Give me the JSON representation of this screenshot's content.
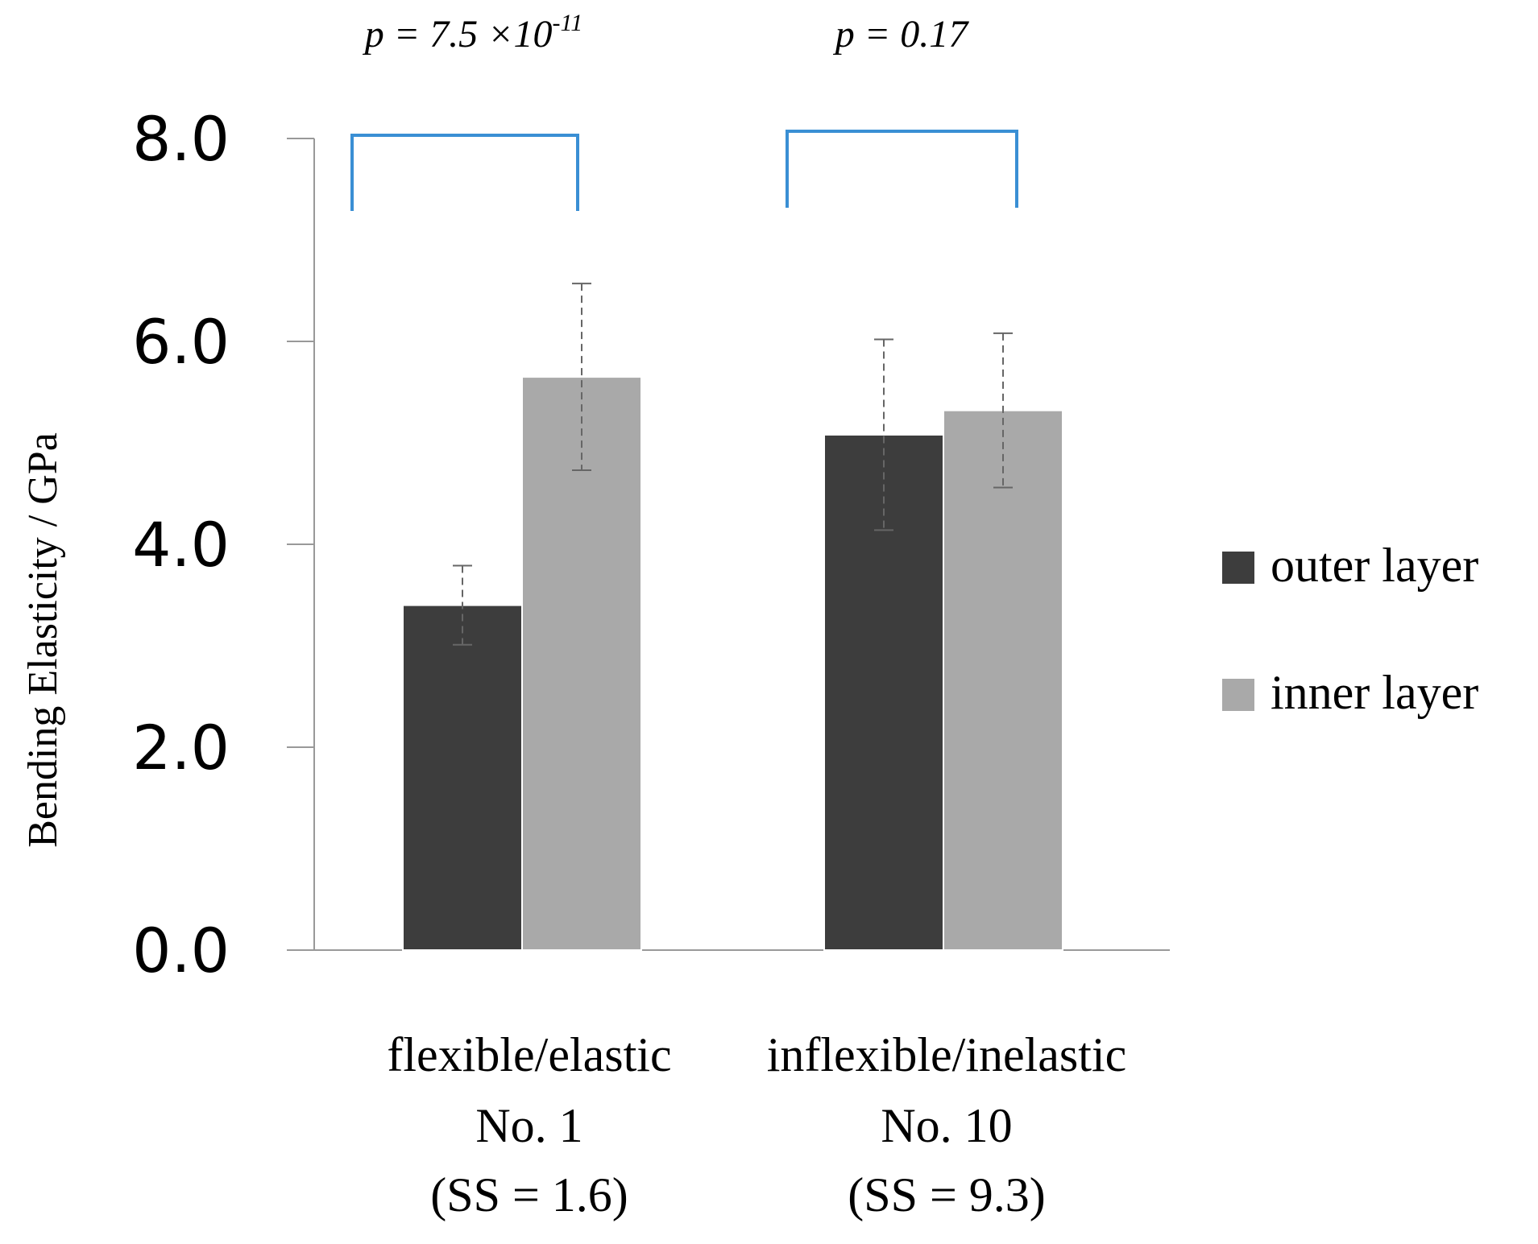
{
  "chart_data": {
    "type": "bar",
    "ylabel": "Bending Elasticity / GPa",
    "ylim": [
      0,
      8
    ],
    "yticks": [
      "0.0",
      "2.0",
      "4.0",
      "6.0",
      "8.0"
    ],
    "ytick_values": [
      0,
      2,
      4,
      6,
      8
    ],
    "categories": [
      {
        "line1": "flexible/elastic",
        "line2": "No. 1",
        "line3": "(SS = 1.6)"
      },
      {
        "line1": "inflexible/inelastic",
        "line2": "No. 10",
        "line3": "(SS = 9.3)"
      }
    ],
    "series": [
      {
        "name": "outer layer",
        "color": "#3d3d3d",
        "values": [
          3.4,
          5.08
        ],
        "errors": [
          0.39,
          0.94
        ]
      },
      {
        "name": "inner layer",
        "color": "#a9a9a9",
        "values": [
          5.65,
          5.32
        ],
        "errors": [
          0.92,
          0.76
        ]
      }
    ],
    "significance": [
      {
        "prefix": "p = 7.5 ×10",
        "exponent": "-11",
        "bracket_color": "#3a8fd4"
      },
      {
        "prefix": "p = 0.17",
        "exponent": "",
        "bracket_color": "#3a8fd4"
      }
    ]
  }
}
